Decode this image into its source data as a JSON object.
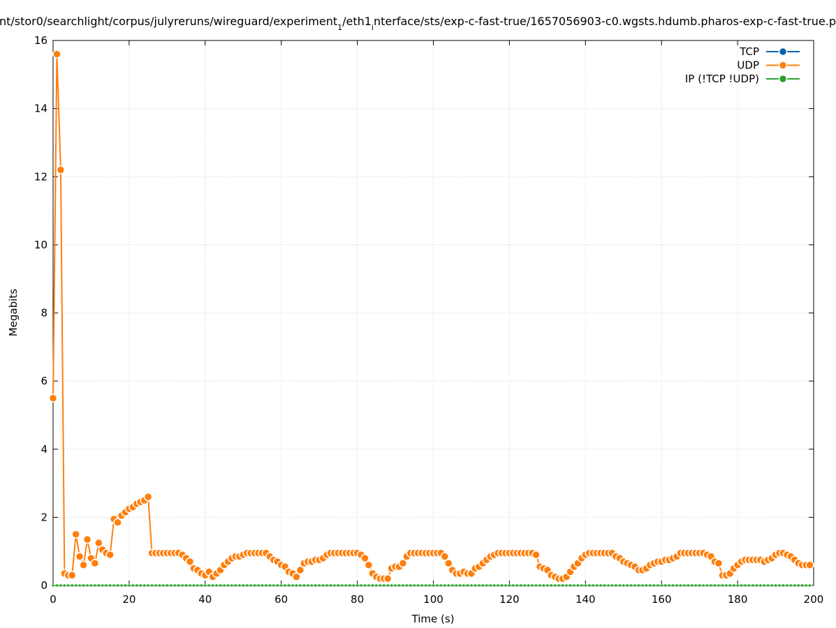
{
  "chart_data": {
    "type": "line",
    "title": [
      "nt/stor0/searchlight/corpus/julyreruns/wireguard/experiment",
      "1",
      "/eth1",
      "i",
      "nterface/sts/exp-c-fast-true/1657056903-c0.wgsts.hdumb.pharos-exp-c-fast-true.p"
    ],
    "x_label": "Time (s)",
    "y_label": "Megabits",
    "xlim": [
      0,
      200
    ],
    "xticks": [
      0,
      20,
      40,
      60,
      80,
      100,
      120,
      140,
      160,
      180,
      200
    ],
    "ylim": [
      0,
      16
    ],
    "yticks": [
      0,
      2,
      4,
      6,
      8,
      10,
      12,
      14,
      16
    ],
    "grid": true,
    "legend": "top-right",
    "x": [
      0,
      1,
      2,
      3,
      4,
      5,
      6,
      7,
      8,
      9,
      10,
      11,
      12,
      13,
      14,
      15,
      16,
      17,
      18,
      19,
      20,
      21,
      22,
      23,
      24,
      25,
      26,
      27,
      28,
      29,
      30,
      31,
      32,
      33,
      34,
      35,
      36,
      37,
      38,
      39,
      40,
      41,
      42,
      43,
      44,
      45,
      46,
      47,
      48,
      49,
      50,
      51,
      52,
      53,
      54,
      55,
      56,
      57,
      58,
      59,
      60,
      61,
      62,
      63,
      64,
      65,
      66,
      67,
      68,
      69,
      70,
      71,
      72,
      73,
      74,
      75,
      76,
      77,
      78,
      79,
      80,
      81,
      82,
      83,
      84,
      85,
      86,
      87,
      88,
      89,
      90,
      91,
      92,
      93,
      94,
      95,
      96,
      97,
      98,
      99,
      100,
      101,
      102,
      103,
      104,
      105,
      106,
      107,
      108,
      109,
      110,
      111,
      112,
      113,
      114,
      115,
      116,
      117,
      118,
      119,
      120,
      121,
      122,
      123,
      124,
      125,
      126,
      127,
      128,
      129,
      130,
      131,
      132,
      133,
      134,
      135,
      136,
      137,
      138,
      139,
      140,
      141,
      142,
      143,
      144,
      145,
      146,
      147,
      148,
      149,
      150,
      151,
      152,
      153,
      154,
      155,
      156,
      157,
      158,
      159,
      160,
      161,
      162,
      163,
      164,
      165,
      166,
      167,
      168,
      169,
      170,
      171,
      172,
      173,
      174,
      175,
      176,
      177,
      178,
      179,
      180,
      181,
      182,
      183,
      184,
      185,
      186,
      187,
      188,
      189,
      190,
      191,
      192,
      193,
      194,
      195,
      196,
      197,
      198,
      199
    ],
    "series": [
      {
        "name": "TCP",
        "color": "#0b62b0",
        "values": [
          0,
          0,
          0,
          0,
          0,
          0,
          0,
          0,
          0,
          0,
          0,
          0,
          0,
          0,
          0,
          0,
          0,
          0,
          0,
          0,
          0,
          0,
          0,
          0,
          0,
          0,
          0,
          0,
          0,
          0,
          0,
          0,
          0,
          0,
          0,
          0,
          0,
          0,
          0,
          0,
          0,
          0,
          0,
          0,
          0,
          0,
          0,
          0,
          0,
          0,
          0,
          0,
          0,
          0,
          0,
          0,
          0,
          0,
          0,
          0,
          0,
          0,
          0,
          0,
          0,
          0,
          0,
          0,
          0,
          0,
          0,
          0,
          0,
          0,
          0,
          0,
          0,
          0,
          0,
          0,
          0,
          0,
          0,
          0,
          0,
          0,
          0,
          0,
          0,
          0,
          0,
          0,
          0,
          0,
          0,
          0,
          0,
          0,
          0,
          0,
          0,
          0,
          0,
          0,
          0,
          0,
          0,
          0,
          0,
          0,
          0,
          0,
          0,
          0,
          0,
          0,
          0,
          0,
          0,
          0,
          0,
          0,
          0,
          0,
          0,
          0,
          0,
          0,
          0,
          0,
          0,
          0,
          0,
          0,
          0,
          0,
          0,
          0,
          0,
          0,
          0,
          0,
          0,
          0,
          0,
          0,
          0,
          0,
          0,
          0,
          0,
          0,
          0,
          0,
          0,
          0,
          0,
          0,
          0,
          0,
          0,
          0,
          0,
          0,
          0,
          0,
          0,
          0,
          0,
          0,
          0,
          0,
          0,
          0,
          0,
          0,
          0,
          0,
          0,
          0,
          0,
          0,
          0,
          0,
          0,
          0,
          0,
          0,
          0,
          0,
          0,
          0,
          0,
          0,
          0,
          0,
          0,
          0,
          0,
          0
        ]
      },
      {
        "name": "UDP",
        "color": "#ff7f0e",
        "values": [
          5.5,
          15.6,
          12.2,
          0.35,
          0.3,
          0.3,
          1.5,
          0.85,
          0.6,
          1.35,
          0.8,
          0.65,
          1.25,
          1.05,
          0.95,
          0.9,
          1.95,
          1.85,
          2.05,
          2.15,
          2.25,
          2.3,
          2.4,
          2.45,
          2.5,
          2.6,
          0.95,
          0.95,
          0.95,
          0.95,
          0.95,
          0.95,
          0.95,
          0.95,
          0.9,
          0.8,
          0.7,
          0.5,
          0.45,
          0.35,
          0.3,
          0.4,
          0.25,
          0.35,
          0.45,
          0.6,
          0.7,
          0.8,
          0.85,
          0.85,
          0.9,
          0.95,
          0.95,
          0.95,
          0.95,
          0.95,
          0.95,
          0.85,
          0.75,
          0.7,
          0.6,
          0.55,
          0.4,
          0.35,
          0.25,
          0.45,
          0.65,
          0.7,
          0.7,
          0.75,
          0.75,
          0.8,
          0.9,
          0.95,
          0.95,
          0.95,
          0.95,
          0.95,
          0.95,
          0.95,
          0.95,
          0.9,
          0.8,
          0.6,
          0.35,
          0.25,
          0.2,
          0.2,
          0.2,
          0.5,
          0.55,
          0.55,
          0.65,
          0.85,
          0.95,
          0.95,
          0.95,
          0.95,
          0.95,
          0.95,
          0.95,
          0.95,
          0.95,
          0.85,
          0.65,
          0.45,
          0.35,
          0.35,
          0.4,
          0.35,
          0.35,
          0.5,
          0.55,
          0.65,
          0.75,
          0.85,
          0.9,
          0.95,
          0.95,
          0.95,
          0.95,
          0.95,
          0.95,
          0.95,
          0.95,
          0.95,
          0.95,
          0.9,
          0.55,
          0.5,
          0.45,
          0.3,
          0.25,
          0.2,
          0.2,
          0.25,
          0.4,
          0.55,
          0.65,
          0.8,
          0.9,
          0.95,
          0.95,
          0.95,
          0.95,
          0.95,
          0.95,
          0.95,
          0.85,
          0.8,
          0.7,
          0.65,
          0.6,
          0.55,
          0.45,
          0.45,
          0.5,
          0.6,
          0.65,
          0.7,
          0.7,
          0.75,
          0.75,
          0.8,
          0.85,
          0.95,
          0.95,
          0.95,
          0.95,
          0.95,
          0.95,
          0.95,
          0.9,
          0.85,
          0.7,
          0.65,
          0.3,
          0.3,
          0.35,
          0.5,
          0.6,
          0.7,
          0.75,
          0.75,
          0.75,
          0.75,
          0.75,
          0.7,
          0.75,
          0.8,
          0.9,
          0.95,
          0.95,
          0.9,
          0.85,
          0.75,
          0.65,
          0.6,
          0.6,
          0.6
        ]
      },
      {
        "name": "IP (!TCP  !UDP)",
        "color": "#2ca02c",
        "values": [
          0,
          0,
          0,
          0,
          0,
          0,
          0,
          0,
          0,
          0,
          0,
          0,
          0,
          0,
          0,
          0,
          0,
          0,
          0,
          0,
          0,
          0,
          0,
          0,
          0,
          0,
          0,
          0,
          0,
          0,
          0,
          0,
          0,
          0,
          0,
          0,
          0,
          0,
          0,
          0,
          0,
          0,
          0,
          0,
          0,
          0,
          0,
          0,
          0,
          0,
          0,
          0,
          0,
          0,
          0,
          0,
          0,
          0,
          0,
          0,
          0,
          0,
          0,
          0,
          0,
          0,
          0,
          0,
          0,
          0,
          0,
          0,
          0,
          0,
          0,
          0,
          0,
          0,
          0,
          0,
          0,
          0,
          0,
          0,
          0,
          0,
          0,
          0,
          0,
          0,
          0,
          0,
          0,
          0,
          0,
          0,
          0,
          0,
          0,
          0,
          0,
          0,
          0,
          0,
          0,
          0,
          0,
          0,
          0,
          0,
          0,
          0,
          0,
          0,
          0,
          0,
          0,
          0,
          0,
          0,
          0,
          0,
          0,
          0,
          0,
          0,
          0,
          0,
          0,
          0,
          0,
          0,
          0,
          0,
          0,
          0,
          0,
          0,
          0,
          0,
          0,
          0,
          0,
          0,
          0,
          0,
          0,
          0,
          0,
          0,
          0,
          0,
          0,
          0,
          0,
          0,
          0,
          0,
          0,
          0,
          0,
          0,
          0,
          0,
          0,
          0,
          0,
          0,
          0,
          0,
          0,
          0,
          0,
          0,
          0,
          0,
          0,
          0,
          0,
          0,
          0,
          0,
          0,
          0,
          0,
          0,
          0,
          0,
          0,
          0,
          0,
          0,
          0,
          0,
          0,
          0,
          0,
          0,
          0,
          0
        ]
      }
    ]
  }
}
